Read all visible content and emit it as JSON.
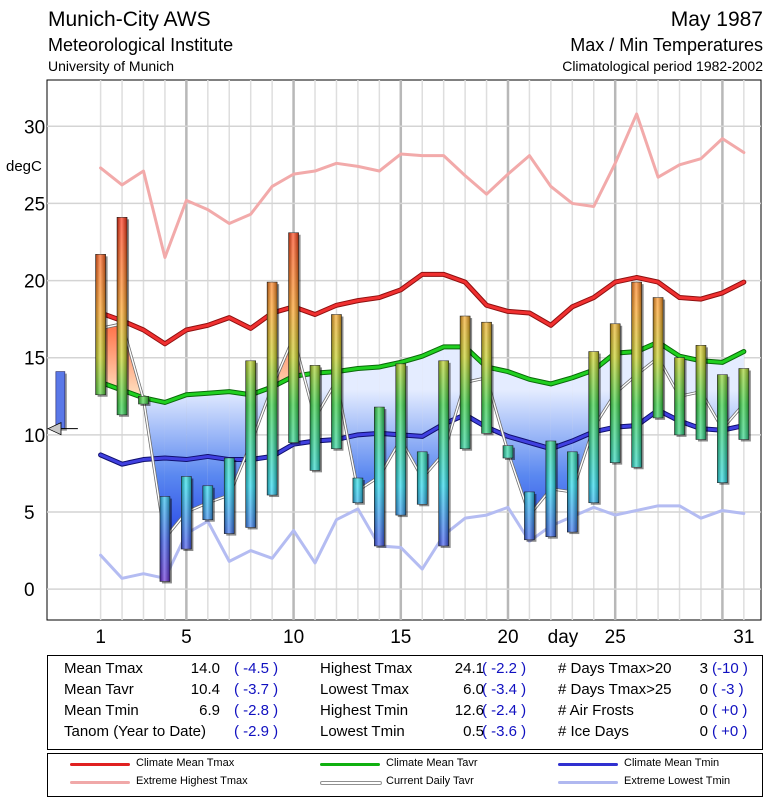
{
  "header": {
    "station": "Munich-City AWS",
    "institute": "Meteorological Institute",
    "university": "University of Munich",
    "month": "May 1987",
    "chart_kind": "Max / Min Temperatures",
    "period": "Climatological period 1982-2002"
  },
  "chart_data": {
    "type": "bar",
    "title": "Max / Min Temperatures",
    "xlabel": "day",
    "ylabel": "degC",
    "ylim": [
      -2,
      33
    ],
    "xlim": [
      -1.5,
      31.8
    ],
    "yticks": [
      0,
      5,
      10,
      15,
      20,
      25,
      30
    ],
    "xticks": [
      1,
      5,
      10,
      15,
      20,
      25,
      31
    ],
    "days": [
      1,
      2,
      3,
      4,
      5,
      6,
      7,
      8,
      9,
      10,
      11,
      12,
      13,
      14,
      15,
      16,
      17,
      18,
      19,
      20,
      21,
      22,
      23,
      24,
      25,
      26,
      27,
      28,
      29,
      30,
      31
    ],
    "tmax": [
      21.7,
      24.1,
      12.5,
      6.0,
      7.3,
      6.7,
      8.5,
      14.8,
      19.9,
      23.1,
      14.5,
      17.8,
      7.2,
      11.8,
      14.6,
      8.9,
      14.8,
      17.7,
      17.3,
      9.3,
      6.3,
      9.6,
      8.9,
      15.4,
      17.2,
      19.9,
      18.9,
      15.0,
      15.8,
      13.9,
      14.3
    ],
    "tmin": [
      12.6,
      11.3,
      12.0,
      0.5,
      2.6,
      4.5,
      3.6,
      4.0,
      6.1,
      9.5,
      7.7,
      9.1,
      5.6,
      2.8,
      4.8,
      5.5,
      2.8,
      9.1,
      10.1,
      8.5,
      3.2,
      3.4,
      3.7,
      5.6,
      8.2,
      7.9,
      11.1,
      10.0,
      9.7,
      6.9,
      9.7
    ],
    "tavr": [
      16.9,
      17.2,
      12.3,
      3.3,
      5.0,
      5.6,
      6.1,
      9.4,
      13.1,
      16.3,
      11.1,
      13.5,
      6.4,
      7.3,
      9.7,
      7.2,
      8.8,
      13.4,
      13.7,
      8.9,
      4.8,
      6.5,
      6.3,
      10.5,
      12.7,
      13.9,
      15.0,
      12.5,
      12.8,
      10.4,
      12.0
    ],
    "climate_mean_tmax": [
      17.9,
      17.4,
      16.8,
      15.9,
      16.8,
      17.1,
      17.6,
      16.9,
      17.9,
      18.3,
      17.8,
      18.4,
      18.7,
      18.9,
      19.4,
      20.4,
      20.4,
      19.9,
      18.4,
      18.0,
      17.9,
      17.1,
      18.3,
      18.9,
      19.9,
      20.2,
      19.9,
      18.9,
      18.8,
      19.2,
      19.9
    ],
    "climate_mean_tavr": [
      13.4,
      12.9,
      12.4,
      12.1,
      12.6,
      12.7,
      12.8,
      12.6,
      13.1,
      13.8,
      14.0,
      14.1,
      14.3,
      14.4,
      14.7,
      15.1,
      15.7,
      15.7,
      14.4,
      14.1,
      13.6,
      13.3,
      13.7,
      14.2,
      15.3,
      15.4,
      16.0,
      15.1,
      14.8,
      14.7,
      15.4
    ],
    "climate_mean_tmin": [
      8.7,
      8.1,
      8.4,
      8.5,
      8.4,
      8.6,
      8.4,
      8.4,
      8.6,
      9.4,
      9.6,
      9.7,
      10.0,
      10.1,
      10.0,
      9.9,
      10.7,
      11.3,
      10.5,
      9.9,
      9.5,
      9.1,
      9.6,
      10.2,
      10.5,
      10.6,
      11.6,
      10.9,
      10.4,
      10.3,
      10.6
    ],
    "extreme_highest_tmax": [
      27.3,
      26.2,
      27.1,
      21.5,
      25.2,
      24.6,
      23.7,
      24.3,
      26.1,
      26.9,
      27.1,
      27.6,
      27.4,
      27.1,
      28.2,
      28.1,
      28.1,
      26.8,
      25.6,
      26.9,
      28.1,
      26.1,
      25.0,
      24.8,
      27.6,
      30.8,
      26.7,
      27.5,
      27.9,
      29.2,
      28.3
    ],
    "extreme_lowest_tmin": [
      2.2,
      0.7,
      1.0,
      0.7,
      3.6,
      4.4,
      1.8,
      2.5,
      2.0,
      3.8,
      1.7,
      4.5,
      5.2,
      2.8,
      2.7,
      1.3,
      3.5,
      4.6,
      4.8,
      5.3,
      3.1,
      4.1,
      4.7,
      5.3,
      4.8,
      5.1,
      5.4,
      5.4,
      4.6,
      5.1,
      4.9
    ],
    "tanom_marker": {
      "tmax": 14.1,
      "tmin": 10.4,
      "pointer": 10.4
    },
    "legend_position": "bottom"
  },
  "stats": {
    "col1": [
      {
        "label": "Mean Tmax",
        "value": "14.0",
        "anomaly": "( -4.5 )"
      },
      {
        "label": "Mean Tavr",
        "value": "10.4",
        "anomaly": "( -3.7 )"
      },
      {
        "label": "Mean Tmin",
        "value": "6.9",
        "anomaly": "( -2.8 )"
      },
      {
        "label": "Tanom (Year to Date)",
        "value": "",
        "anomaly": "( -2.9 )"
      }
    ],
    "col2": [
      {
        "label": "Highest Tmax",
        "value": "24.1",
        "anomaly": "( -2.2 )"
      },
      {
        "label": "Lowest Tmax",
        "value": "6.0",
        "anomaly": "( -3.4 )"
      },
      {
        "label": "Highest Tmin",
        "value": "12.6",
        "anomaly": "( -2.4 )"
      },
      {
        "label": "Lowest Tmin",
        "value": "0.5",
        "anomaly": "( -3.6 )"
      }
    ],
    "col3": [
      {
        "label": "# Days Tmax>20",
        "value": "3",
        "anomaly": "(-10 )"
      },
      {
        "label": "# Days Tmax>25",
        "value": "0",
        "anomaly": "( -3 )"
      },
      {
        "label": "# Air Frosts",
        "value": "0",
        "anomaly": "( +0 )"
      },
      {
        "label": "# Ice Days",
        "value": "0",
        "anomaly": "( +0 )"
      }
    ]
  },
  "legend": [
    {
      "label": "Climate Mean Tmax",
      "color": "#e02020"
    },
    {
      "label": "Climate Mean Tavr",
      "color": "#10b010"
    },
    {
      "label": "Climate Mean Tmin",
      "color": "#3030d0"
    },
    {
      "label": "Extreme Highest Tmax",
      "color": "#f0a8a8"
    },
    {
      "label": "Current Daily Tavr",
      "color": "#909090"
    },
    {
      "label": "Extreme Lowest Tmin",
      "color": "#b0b8f0"
    }
  ]
}
